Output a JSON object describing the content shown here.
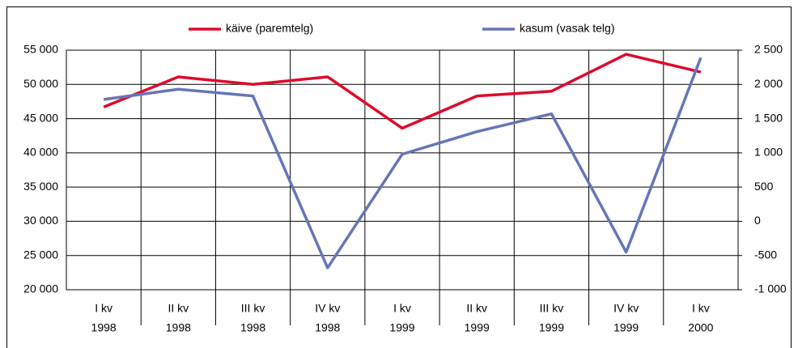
{
  "chart_data": {
    "type": "line",
    "categories": [
      [
        "I kv",
        "1998"
      ],
      [
        "II kv",
        "1998"
      ],
      [
        "III kv",
        "1998"
      ],
      [
        "IV kv",
        "1998"
      ],
      [
        "I kv",
        "1999"
      ],
      [
        "II kv",
        "1999"
      ],
      [
        "III kv",
        "1999"
      ],
      [
        "IV kv",
        "1999"
      ],
      [
        "I kv",
        "2000"
      ]
    ],
    "series": [
      {
        "name": "käive (paremtelg)",
        "color": "#dd0a2c",
        "axis": "y2",
        "values": [
          1670,
          2110,
          2000,
          2110,
          1360,
          1830,
          1900,
          2440,
          2180
        ]
      },
      {
        "name": "kasum (vasak telg)",
        "color": "#6675b7",
        "values": [
          47800,
          49300,
          48300,
          23200,
          39800,
          43100,
          45700,
          25500,
          53900
        ]
      }
    ],
    "ylim": [
      20000,
      55000
    ],
    "yticks": [
      {
        "value": 20000,
        "label": "20 000"
      },
      {
        "value": 25000,
        "label": "25 000"
      },
      {
        "value": 30000,
        "label": "30 000"
      },
      {
        "value": 35000,
        "label": "35 000"
      },
      {
        "value": 40000,
        "label": "40 000"
      },
      {
        "value": 45000,
        "label": "45 000"
      },
      {
        "value": 50000,
        "label": "50 000"
      },
      {
        "value": 55000,
        "label": "55 000"
      }
    ],
    "y2lim": [
      -1000,
      2500
    ],
    "y2ticks": [
      {
        "value": -1000,
        "label": "-1 000"
      },
      {
        "value": -500,
        "label": "-500"
      },
      0,
      500,
      {
        "value": 1000,
        "label": "1 000"
      },
      {
        "value": 1500,
        "label": "1 500"
      },
      {
        "value": 2000,
        "label": "2 000"
      },
      {
        "value": 2500,
        "label": "2 500"
      }
    ],
    "grid": true,
    "legend": "top"
  }
}
